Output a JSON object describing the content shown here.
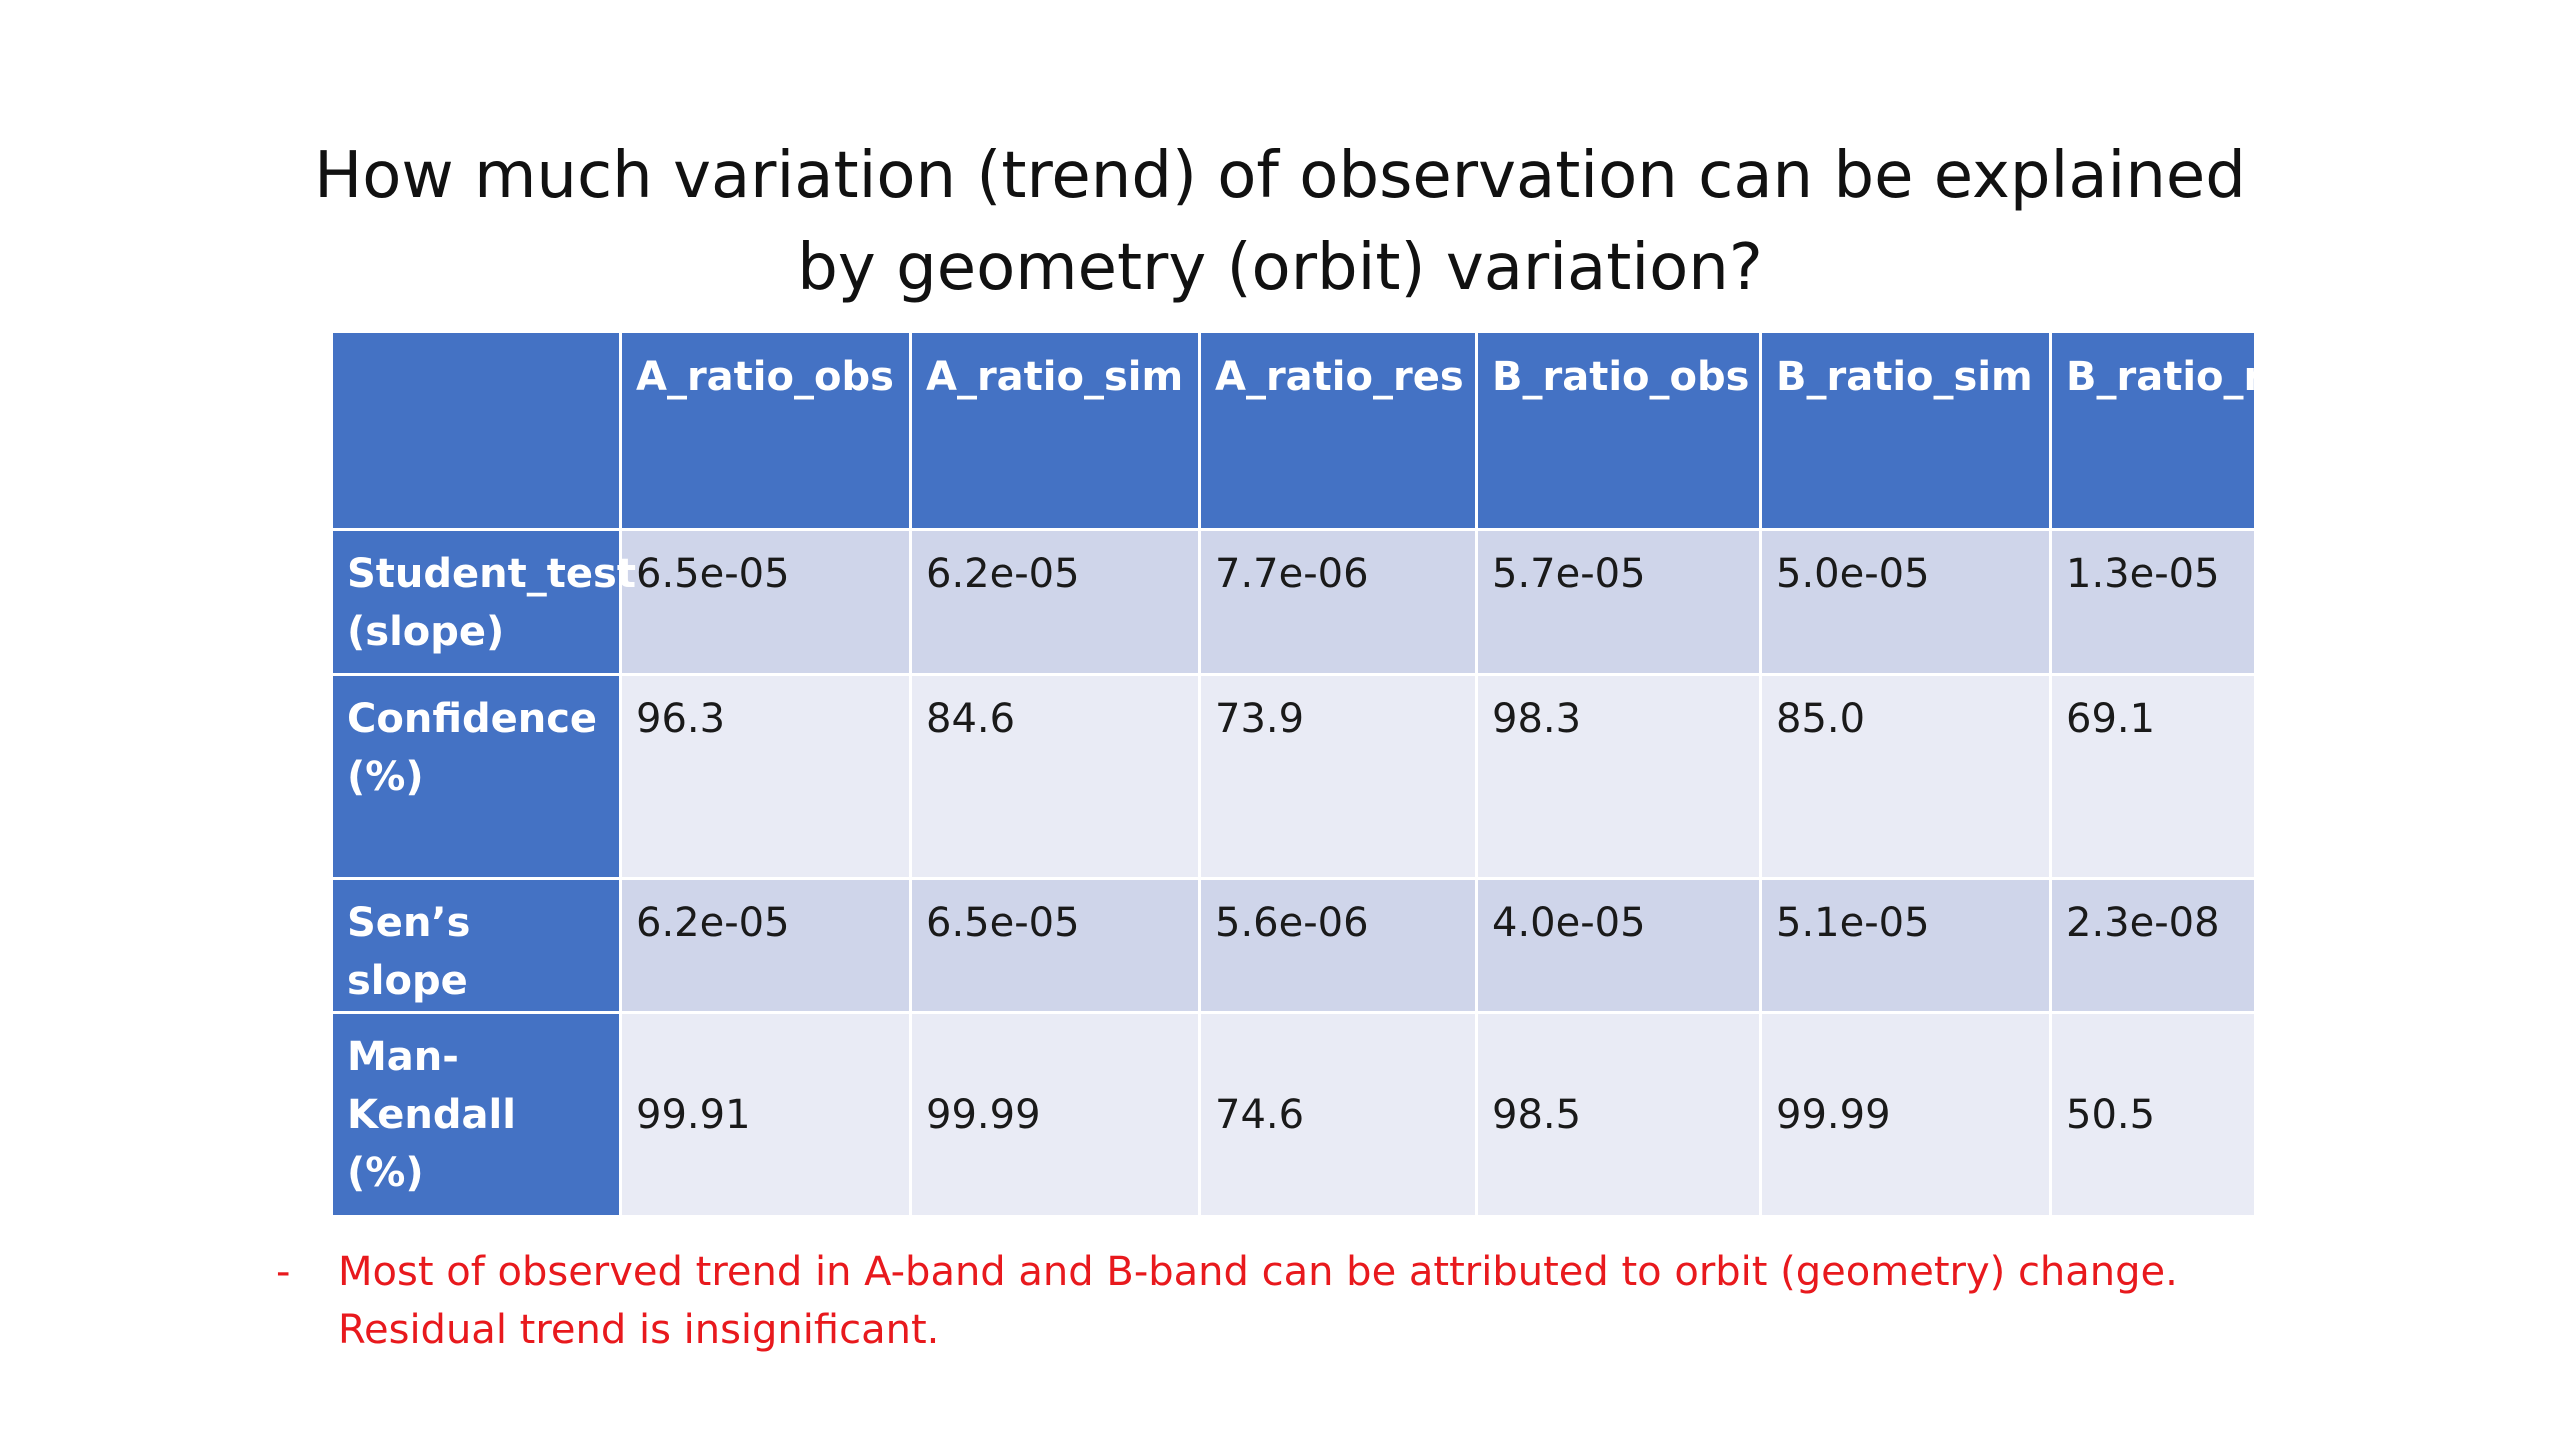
{
  "title": {
    "line1": "How much variation (trend) of observation can be explained",
    "line2": "by geometry (orbit) variation?"
  },
  "table": {
    "columns": [
      "",
      "A_ratio_obs",
      "A_ratio_sim",
      "A_ratio_res",
      "B_ratio_obs",
      "B_ratio_sim",
      "B_ratio_res"
    ],
    "rows": [
      {
        "label": "Student_test (slope)",
        "values": [
          "6.5e-05",
          "6.2e-05",
          "7.7e-06",
          "5.7e-05",
          "5.0e-05",
          "1.3e-05"
        ]
      },
      {
        "label": "Confidence (%)",
        "values": [
          "96.3",
          "84.6",
          "73.9",
          "98.3",
          "85.0",
          "69.1"
        ]
      },
      {
        "label": "Sen’s slope",
        "values": [
          "6.2e-05",
          "6.5e-05",
          "5.6e-06",
          "4.0e-05",
          "5.1e-05",
          "2.3e-08"
        ]
      },
      {
        "label": "Man-Kendall (%)",
        "values": [
          "99.91",
          "99.99",
          "74.6",
          "98.5",
          "99.99",
          "50.5"
        ]
      }
    ]
  },
  "note": {
    "bullet": "-",
    "line1": "Most of observed trend in A-band and B-band can be attributed to orbit (geometry) change.",
    "line2": "Residual trend is insignificant."
  },
  "colors": {
    "header_blue": "#4472c4",
    "row_dark": "#cfd5ea",
    "row_light": "#e9ebf5",
    "note_red": "#e8191d"
  }
}
